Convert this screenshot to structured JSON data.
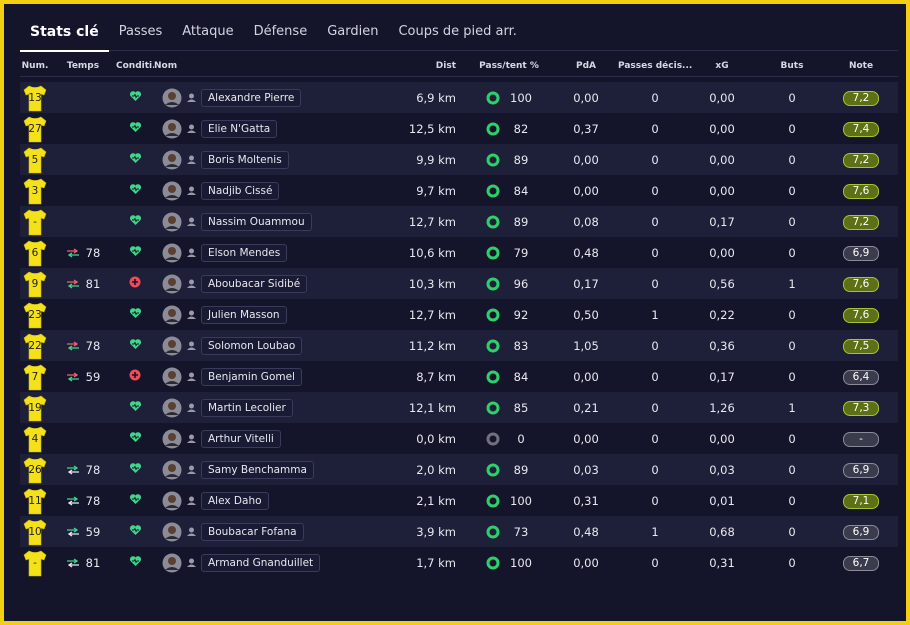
{
  "tabs": [
    "Stats clé",
    "Passes",
    "Attaque",
    "Défense",
    "Gardien",
    "Coups de pied arr."
  ],
  "table": {
    "headers": [
      "Num.",
      "Temps",
      "Conditi...",
      "Nom",
      "Dist",
      "Pass/tent %",
      "PdA",
      "Passes décis...",
      "xG",
      "Buts",
      "Note"
    ],
    "rows": [
      {
        "num": "13",
        "condition": "ok",
        "name": "Alexandre Pierre",
        "dist": "6,9 km",
        "pass": "100",
        "pda": "0,00",
        "passes_dec": "0",
        "xg": "0,00",
        "buts": "0",
        "note": "7,2"
      },
      {
        "num": "27",
        "condition": "ok",
        "name": "Elie N'Gatta",
        "dist": "12,5 km",
        "pass": "82",
        "pda": "0,37",
        "passes_dec": "0",
        "xg": "0,00",
        "buts": "0",
        "note": "7,4"
      },
      {
        "num": "5",
        "condition": "ok",
        "name": "Boris Moltenis",
        "dist": "9,9 km",
        "pass": "89",
        "pda": "0,00",
        "passes_dec": "0",
        "xg": "0,00",
        "buts": "0",
        "note": "7,2"
      },
      {
        "num": "3",
        "condition": "ok",
        "name": "Nadjib Cissé",
        "dist": "9,7 km",
        "pass": "84",
        "pda": "0,00",
        "passes_dec": "0",
        "xg": "0,00",
        "buts": "0",
        "note": "7,6"
      },
      {
        "num": "-",
        "condition": "ok",
        "name": "Nassim Ouammou",
        "dist": "12,7 km",
        "pass": "89",
        "pda": "0,08",
        "passes_dec": "0",
        "xg": "0,17",
        "buts": "0",
        "note": "7,2"
      },
      {
        "num": "6",
        "sub": {
          "dir": "out",
          "minute": "78"
        },
        "condition": "ok",
        "name": "Elson Mendes",
        "dist": "10,6 km",
        "pass": "79",
        "pda": "0,48",
        "passes_dec": "0",
        "xg": "0,00",
        "buts": "0",
        "note": "6,9"
      },
      {
        "num": "9",
        "sub": {
          "dir": "out",
          "minute": "81"
        },
        "condition": "injured",
        "name": "Aboubacar Sidibé",
        "dist": "10,3 km",
        "pass": "96",
        "pda": "0,17",
        "passes_dec": "0",
        "xg": "0,56",
        "buts": "1",
        "note": "7,6"
      },
      {
        "num": "23",
        "condition": "ok",
        "name": "Julien Masson",
        "dist": "12,7 km",
        "pass": "92",
        "pda": "0,50",
        "passes_dec": "1",
        "xg": "0,22",
        "buts": "0",
        "note": "7,6"
      },
      {
        "num": "22",
        "sub": {
          "dir": "out",
          "minute": "78"
        },
        "condition": "ok",
        "name": "Solomon Loubao",
        "dist": "11,2 km",
        "pass": "83",
        "pda": "1,05",
        "passes_dec": "0",
        "xg": "0,36",
        "buts": "0",
        "note": "7,5"
      },
      {
        "num": "7",
        "sub": {
          "dir": "out",
          "minute": "59"
        },
        "condition": "injured",
        "name": "Benjamin Gomel",
        "dist": "8,7 km",
        "pass": "84",
        "pda": "0,00",
        "passes_dec": "0",
        "xg": "0,17",
        "buts": "0",
        "note": "6,4"
      },
      {
        "num": "19",
        "condition": "ok",
        "name": "Martin Lecolier",
        "dist": "12,1 km",
        "pass": "85",
        "pda": "0,21",
        "passes_dec": "0",
        "xg": "1,26",
        "buts": "1",
        "note": "7,3"
      },
      {
        "num": "4",
        "condition": "ok",
        "name": "Arthur Vitelli",
        "dist": "0,0 km",
        "pass": "0",
        "pda": "0,00",
        "passes_dec": "0",
        "xg": "0,00",
        "buts": "0",
        "note": "-"
      },
      {
        "num": "26",
        "sub": {
          "dir": "in",
          "minute": "78"
        },
        "condition": "ok",
        "name": "Samy Benchamma",
        "dist": "2,0 km",
        "pass": "89",
        "pda": "0,03",
        "passes_dec": "0",
        "xg": "0,03",
        "buts": "0",
        "note": "6,9"
      },
      {
        "num": "11",
        "sub": {
          "dir": "in",
          "minute": "78"
        },
        "condition": "ok",
        "name": "Alex Daho",
        "dist": "2,1 km",
        "pass": "100",
        "pda": "0,31",
        "passes_dec": "0",
        "xg": "0,01",
        "buts": "0",
        "note": "7,1"
      },
      {
        "num": "10",
        "sub": {
          "dir": "in",
          "minute": "59"
        },
        "condition": "ok",
        "name": "Boubacar Fofana",
        "dist": "3,9 km",
        "pass": "73",
        "pda": "0,48",
        "passes_dec": "1",
        "xg": "0,68",
        "buts": "0",
        "note": "6,9"
      },
      {
        "num": "-",
        "sub": {
          "dir": "in",
          "minute": "81"
        },
        "condition": "ok",
        "name": "Armand Gnanduillet",
        "dist": "1,7 km",
        "pass": "100",
        "pda": "0,00",
        "passes_dec": "0",
        "xg": "0,31",
        "buts": "0",
        "note": "6,7"
      }
    ]
  }
}
